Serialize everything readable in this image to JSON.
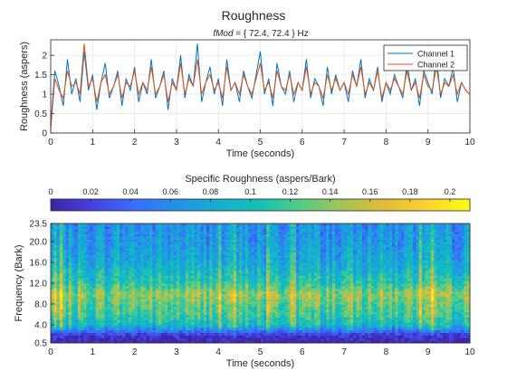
{
  "figure": {
    "title": "Roughness",
    "subtitle_prefix": "fMod",
    "subtitle_rest": " = { 72.4, 72.4 } Hz"
  },
  "chart_data": [
    {
      "type": "line",
      "title": "Roughness",
      "xlabel": "Time (seconds)",
      "ylabel": "Roughness (aspers)",
      "xlim": [
        0,
        10
      ],
      "ylim": [
        0,
        2.4
      ],
      "xticks": [
        "0",
        "1",
        "2",
        "3",
        "4",
        "5",
        "6",
        "7",
        "8",
        "9",
        "10"
      ],
      "yticks": [
        "0",
        "0.5",
        "1",
        "1.5",
        "2"
      ],
      "grid": true,
      "legend_position": "top-right",
      "series": [
        {
          "name": "Channel 1",
          "color": "#0072BD",
          "x": [
            0,
            0.1,
            0.2,
            0.3,
            0.4,
            0.5,
            0.6,
            0.7,
            0.8,
            0.9,
            1.0,
            1.1,
            1.2,
            1.3,
            1.4,
            1.5,
            1.6,
            1.7,
            1.8,
            1.9,
            2.0,
            2.1,
            2.2,
            2.3,
            2.4,
            2.5,
            2.6,
            2.7,
            2.8,
            2.9,
            3.0,
            3.1,
            3.2,
            3.3,
            3.4,
            3.5,
            3.6,
            3.7,
            3.8,
            3.9,
            4.0,
            4.1,
            4.2,
            4.3,
            4.4,
            4.5,
            4.6,
            4.7,
            4.8,
            4.9,
            5.0,
            5.1,
            5.2,
            5.3,
            5.4,
            5.5,
            5.6,
            5.7,
            5.8,
            5.9,
            6.0,
            6.1,
            6.2,
            6.3,
            6.4,
            6.5,
            6.6,
            6.7,
            6.8,
            6.9,
            7.0,
            7.1,
            7.2,
            7.3,
            7.4,
            7.5,
            7.6,
            7.7,
            7.8,
            7.9,
            8.0,
            8.1,
            8.2,
            8.3,
            8.4,
            8.5,
            8.6,
            8.7,
            8.8,
            8.9,
            9.0,
            9.1,
            9.2,
            9.3,
            9.4,
            9.5,
            9.6,
            9.7,
            9.8,
            9.9,
            10.0
          ],
          "values": [
            0.2,
            1.6,
            1.2,
            0.7,
            1.9,
            1.0,
            1.4,
            0.8,
            2.1,
            1.1,
            1.5,
            0.6,
            1.3,
            1.8,
            0.9,
            1.2,
            1.6,
            0.7,
            1.4,
            1.1,
            1.7,
            0.8,
            1.3,
            1.0,
            1.9,
            0.9,
            1.2,
            1.6,
            0.6,
            1.4,
            1.1,
            2.0,
            0.9,
            1.5,
            1.2,
            2.3,
            0.8,
            1.3,
            1.7,
            1.0,
            1.4,
            0.7,
            1.9,
            1.1,
            1.3,
            0.8,
            1.6,
            1.2,
            0.9,
            1.5,
            2.1,
            1.0,
            1.4,
            0.7,
            1.8,
            1.2,
            1.0,
            1.6,
            0.8,
            1.3,
            1.1,
            1.9,
            0.9,
            1.4,
            1.2,
            0.7,
            1.7,
            1.0,
            1.5,
            1.1,
            1.3,
            0.8,
            1.6,
            1.2,
            1.9,
            0.9,
            1.4,
            1.1,
            1.7,
            0.8,
            1.3,
            1.0,
            1.5,
            1.2,
            0.9,
            1.8,
            1.1,
            1.4,
            0.7,
            1.6,
            1.3,
            1.0,
            2.0,
            0.9,
            1.4,
            1.2,
            1.7,
            0.8,
            1.3,
            1.1,
            1.0
          ]
        },
        {
          "name": "Channel 2",
          "color": "#D95319",
          "x": [
            0,
            0.1,
            0.2,
            0.3,
            0.4,
            0.5,
            0.6,
            0.7,
            0.8,
            0.9,
            1.0,
            1.1,
            1.2,
            1.3,
            1.4,
            1.5,
            1.6,
            1.7,
            1.8,
            1.9,
            2.0,
            2.1,
            2.2,
            2.3,
            2.4,
            2.5,
            2.6,
            2.7,
            2.8,
            2.9,
            3.0,
            3.1,
            3.2,
            3.3,
            3.4,
            3.5,
            3.6,
            3.7,
            3.8,
            3.9,
            4.0,
            4.1,
            4.2,
            4.3,
            4.4,
            4.5,
            4.6,
            4.7,
            4.8,
            4.9,
            5.0,
            5.1,
            5.2,
            5.3,
            5.4,
            5.5,
            5.6,
            5.7,
            5.8,
            5.9,
            6.0,
            6.1,
            6.2,
            6.3,
            6.4,
            6.5,
            6.6,
            6.7,
            6.8,
            6.9,
            7.0,
            7.1,
            7.2,
            7.3,
            7.4,
            7.5,
            7.6,
            7.7,
            7.8,
            7.9,
            8.0,
            8.1,
            8.2,
            8.3,
            8.4,
            8.5,
            8.6,
            8.7,
            8.8,
            8.9,
            9.0,
            9.1,
            9.2,
            9.3,
            9.4,
            9.5,
            9.6,
            9.7,
            9.8,
            9.9,
            10.0
          ],
          "values": [
            0.1,
            1.4,
            1.1,
            0.9,
            1.6,
            1.2,
            1.3,
            1.0,
            2.3,
            1.2,
            1.4,
            0.8,
            1.3,
            1.5,
            1.0,
            1.2,
            1.5,
            0.9,
            1.3,
            1.2,
            1.6,
            1.0,
            1.3,
            1.1,
            1.7,
            1.0,
            1.2,
            1.5,
            0.8,
            1.3,
            1.1,
            1.8,
            1.0,
            1.4,
            1.2,
            1.9,
            1.0,
            1.3,
            1.5,
            1.1,
            1.3,
            0.9,
            1.7,
            1.1,
            1.3,
            1.0,
            1.5,
            1.2,
            1.0,
            1.4,
            1.8,
            1.1,
            1.3,
            0.9,
            1.6,
            1.2,
            1.1,
            1.5,
            1.0,
            1.3,
            1.1,
            1.7,
            1.0,
            1.3,
            1.2,
            0.9,
            1.5,
            1.1,
            1.4,
            1.1,
            1.3,
            1.0,
            1.5,
            1.2,
            1.7,
            1.0,
            1.3,
            1.1,
            1.6,
            0.9,
            1.3,
            1.1,
            1.4,
            1.2,
            1.0,
            1.6,
            1.1,
            1.3,
            0.9,
            1.5,
            1.2,
            1.1,
            1.7,
            1.0,
            1.3,
            1.2,
            1.5,
            1.0,
            1.3,
            1.1,
            1.0
          ]
        }
      ]
    },
    {
      "type": "heatmap",
      "xlabel": "Time (seconds)",
      "ylabel": "Frequency (Bark)",
      "xlim": [
        0,
        10
      ],
      "ylim": [
        0.5,
        23.5
      ],
      "xticks": [
        "0",
        "1",
        "2",
        "3",
        "4",
        "5",
        "6",
        "7",
        "8",
        "9",
        "10"
      ],
      "yticks": [
        "0.5",
        "4.0",
        "8.0",
        "12.0",
        "16.0",
        "20.0",
        "23.5"
      ],
      "colorbar_label": "Specific Roughness (aspers/Bark)",
      "colorbar_ticks": [
        "0",
        "0.02",
        "0.04",
        "0.06",
        "0.08",
        "0.1",
        "0.12",
        "0.14",
        "0.16",
        "0.18",
        "0.2"
      ],
      "colorbar_range": [
        0,
        0.21
      ],
      "colormap": "parula",
      "band_profile": [
        {
          "bark": 0.5,
          "level": 0.0
        },
        {
          "bark": 2.0,
          "level": 0.05
        },
        {
          "bark": 4.0,
          "level": 0.45
        },
        {
          "bark": 6.0,
          "level": 0.55
        },
        {
          "bark": 8.0,
          "level": 0.6
        },
        {
          "bark": 10.0,
          "level": 0.68
        },
        {
          "bark": 12.0,
          "level": 0.52
        },
        {
          "bark": 16.0,
          "level": 0.38
        },
        {
          "bark": 20.0,
          "level": 0.32
        },
        {
          "bark": 23.5,
          "level": 0.3
        }
      ]
    }
  ]
}
